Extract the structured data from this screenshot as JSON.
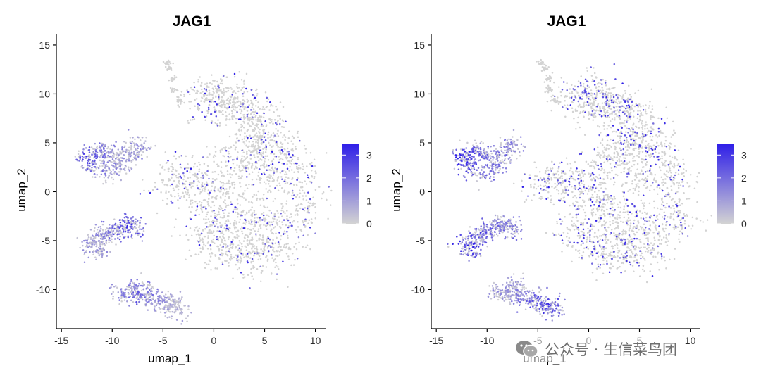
{
  "chart_data": [
    {
      "type": "scatter",
      "title": "JAG1",
      "xlabel": "umap_1",
      "ylabel": "umap_2",
      "xlim": [
        -15.5,
        11
      ],
      "ylim": [
        -14,
        15.5
      ],
      "xticks": [
        -15,
        -10,
        -5,
        0,
        5,
        10
      ],
      "yticks": [
        -10,
        -5,
        0,
        5,
        10,
        15
      ],
      "xtick_labels": [
        "-15",
        "-10",
        "-5",
        "0",
        "5",
        "10"
      ],
      "ytick_labels": [
        "-10",
        "-5",
        "0",
        "5",
        "10",
        "15"
      ],
      "legend": {
        "position": "right",
        "min": 0,
        "max": 3.5,
        "ticks": [
          0,
          1,
          2,
          3
        ],
        "labels": [
          "0",
          "1",
          "2",
          "3"
        ],
        "low_color": "#d3d3d3",
        "high_color": "#2e1ee8"
      },
      "clusters": [
        {
          "points": [
            [
              -12.5,
              3.6
            ],
            [
              -11.2,
              4.2
            ],
            [
              -10.0,
              3.9
            ],
            [
              -11.8,
              2.6
            ],
            [
              -9.2,
              2.8
            ],
            [
              -10.4,
              2.0
            ],
            [
              -8.2,
              3.8
            ],
            [
              -7.5,
              4.8
            ]
          ],
          "mean_expr": 1.4,
          "hot_end": [
            -13.0,
            3.5
          ]
        },
        {
          "points": [
            [
              -12.0,
              -5.3
            ],
            [
              -11.0,
              -4.6
            ],
            [
              -10.2,
              -4.2
            ],
            [
              -9.3,
              -3.7
            ],
            [
              -8.4,
              -3.3
            ],
            [
              -7.7,
              -3.8
            ],
            [
              -11.5,
              -6.0
            ]
          ],
          "mean_expr": 1.3,
          "hot_end": [
            -8.5,
            -3.4
          ]
        },
        {
          "points": [
            [
              -8.8,
              -10.3
            ],
            [
              -7.6,
              -10.5
            ],
            [
              -6.4,
              -10.8
            ],
            [
              -5.2,
              -11.2
            ],
            [
              -4.2,
              -11.5
            ],
            [
              -3.5,
              -12.0
            ],
            [
              -7.2,
              -9.8
            ]
          ],
          "mean_expr": 0.9,
          "hot_end": [
            -7.5,
            -10.8
          ]
        },
        {
          "points": [
            [
              -1.0,
              9.8
            ],
            [
              0.5,
              10.1
            ],
            [
              -0.2,
              9.0
            ],
            [
              1.5,
              9.3
            ],
            [
              2.5,
              8.6
            ],
            [
              3.5,
              8.2
            ],
            [
              4.5,
              7.7
            ],
            [
              4.7,
              5.5
            ],
            [
              4.0,
              4.8
            ],
            [
              3.5,
              3.2
            ],
            [
              2.0,
              3.2
            ],
            [
              6.5,
              5.0
            ],
            [
              7.5,
              3.0
            ],
            [
              8.5,
              1.0
            ],
            [
              8.5,
              -2.0
            ],
            [
              7.5,
              -4.0
            ],
            [
              6.0,
              -6.0
            ],
            [
              4.0,
              -6.5
            ],
            [
              2.0,
              -6.5
            ],
            [
              0.0,
              -5.5
            ],
            [
              -1.0,
              -4.0
            ],
            [
              -0.5,
              -1.0
            ],
            [
              -1.0,
              1.0
            ],
            [
              -3.0,
              1.5
            ],
            [
              -4.0,
              0.5
            ],
            [
              0.5,
              0.5
            ],
            [
              3.0,
              -1.5
            ],
            [
              5.0,
              -3.0
            ],
            [
              1.5,
              -3.5
            ],
            [
              3.5,
              -5.0
            ],
            [
              5.5,
              1.5
            ]
          ],
          "mean_expr": 0.05,
          "hot_end": null
        },
        {
          "points": [
            [
              -4.6,
              13.1
            ],
            [
              -4.3,
              12.6
            ],
            [
              -4.0,
              11.5
            ],
            [
              -3.9,
              10.4
            ],
            [
              -3.4,
              9.3
            ]
          ],
          "mean_expr": 0.0,
          "hot_end": null
        }
      ]
    },
    {
      "type": "scatter",
      "title": "JAG1",
      "xlabel": "umap_1",
      "ylabel": "umap_2",
      "xlim": [
        -15.5,
        11
      ],
      "ylim": [
        -14,
        15.5
      ],
      "xticks": [
        -15,
        -10,
        -5,
        0,
        5,
        10
      ],
      "yticks": [
        -10,
        -5,
        0,
        5,
        10,
        15
      ],
      "xtick_labels": [
        "-15",
        "-10",
        "-5",
        "0",
        "5",
        "10"
      ],
      "ytick_labels": [
        "-10",
        "-5",
        "0",
        "5",
        "10",
        "15"
      ],
      "legend": {
        "position": "right",
        "min": 0,
        "max": 3.5,
        "ticks": [
          0,
          1,
          2,
          3
        ],
        "labels": [
          "0",
          "1",
          "2",
          "3"
        ],
        "low_color": "#d3d3d3",
        "high_color": "#2e1ee8"
      },
      "clusters": [
        {
          "points": [
            [
              -12.5,
              3.6
            ],
            [
              -11.2,
              4.2
            ],
            [
              -10.0,
              3.9
            ],
            [
              -11.8,
              2.6
            ],
            [
              -9.2,
              2.8
            ],
            [
              -10.4,
              2.0
            ],
            [
              -8.2,
              3.8
            ],
            [
              -7.5,
              4.8
            ]
          ],
          "mean_expr": 1.9,
          "hot_end": [
            -13.0,
            3.5
          ]
        },
        {
          "points": [
            [
              -12.0,
              -5.3
            ],
            [
              -11.0,
              -4.6
            ],
            [
              -10.2,
              -4.2
            ],
            [
              -9.3,
              -3.7
            ],
            [
              -8.4,
              -3.3
            ],
            [
              -7.7,
              -3.8
            ],
            [
              -11.5,
              -6.0
            ]
          ],
          "mean_expr": 1.9,
          "hot_end": [
            -12.0,
            -5.5
          ]
        },
        {
          "points": [
            [
              -8.8,
              -10.3
            ],
            [
              -7.6,
              -10.5
            ],
            [
              -6.4,
              -10.8
            ],
            [
              -5.2,
              -11.2
            ],
            [
              -4.2,
              -11.5
            ],
            [
              -3.5,
              -12.0
            ],
            [
              -7.2,
              -9.8
            ]
          ],
          "mean_expr": 1.4,
          "hot_end": [
            -4.5,
            -12.0
          ]
        },
        {
          "points": [
            [
              -1.0,
              9.8
            ],
            [
              0.5,
              10.1
            ],
            [
              -0.2,
              9.0
            ],
            [
              1.5,
              9.3
            ],
            [
              2.5,
              8.6
            ],
            [
              3.5,
              8.2
            ],
            [
              4.5,
              7.7
            ],
            [
              4.7,
              5.5
            ],
            [
              4.0,
              4.8
            ],
            [
              3.5,
              3.2
            ],
            [
              2.0,
              3.2
            ],
            [
              6.5,
              5.0
            ],
            [
              7.5,
              3.0
            ],
            [
              8.5,
              1.0
            ],
            [
              8.5,
              -2.0
            ],
            [
              7.5,
              -4.0
            ],
            [
              6.0,
              -6.0
            ],
            [
              4.0,
              -6.5
            ],
            [
              2.0,
              -6.5
            ],
            [
              0.0,
              -5.5
            ],
            [
              -1.0,
              -4.0
            ],
            [
              -0.5,
              -1.0
            ],
            [
              -1.0,
              1.0
            ],
            [
              -3.0,
              1.5
            ],
            [
              -4.0,
              0.5
            ],
            [
              0.5,
              0.5
            ],
            [
              3.0,
              -1.5
            ],
            [
              5.0,
              -3.0
            ],
            [
              1.5,
              -3.5
            ],
            [
              3.5,
              -5.0
            ],
            [
              5.5,
              1.5
            ]
          ],
          "mean_expr": 0.08,
          "hot_end": null
        },
        {
          "points": [
            [
              -4.6,
              13.1
            ],
            [
              -4.3,
              12.6
            ],
            [
              -4.0,
              11.5
            ],
            [
              -3.9,
              10.4
            ],
            [
              -3.4,
              9.3
            ]
          ],
          "mean_expr": 0.0,
          "hot_end": null
        }
      ]
    }
  ],
  "watermark": {
    "icon": "wechat-icon",
    "text": "公众号 · 生信菜鸟团"
  }
}
